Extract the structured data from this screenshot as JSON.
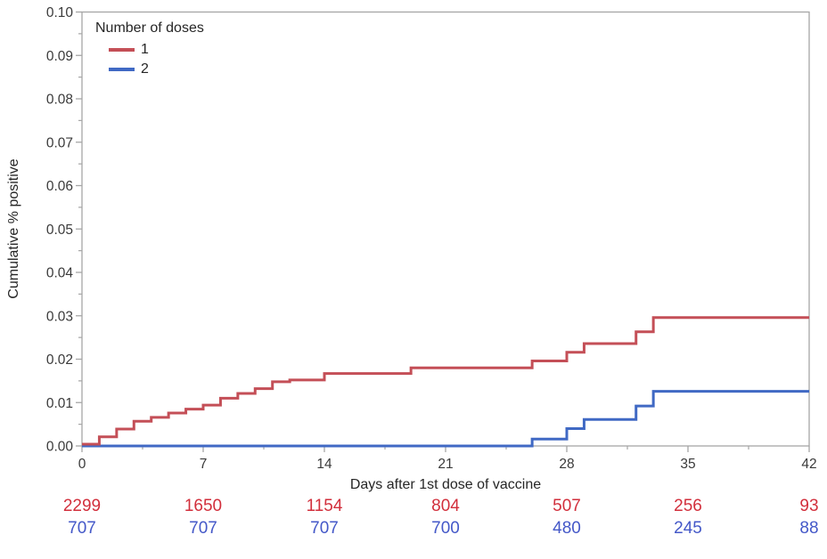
{
  "chart_data": {
    "type": "line",
    "subtype": "step-cumulative-incidence",
    "title": "",
    "xlabel": "Days after 1st dose of vaccine",
    "ylabel": "Cumulative % positive",
    "xlim": [
      0,
      42
    ],
    "ylim": [
      0,
      0.1
    ],
    "grid": "off",
    "axis_color": "#A6A6A6",
    "tick_text_color": "#3A3A3A",
    "xticks": [
      {
        "v": 0,
        "label": "0"
      },
      {
        "v": 7,
        "label": "7"
      },
      {
        "v": 14,
        "label": "14"
      },
      {
        "v": 21,
        "label": "21"
      },
      {
        "v": 28,
        "label": "28"
      },
      {
        "v": 35,
        "label": "35"
      },
      {
        "v": 42,
        "label": "42"
      }
    ],
    "xminor": [
      3.5,
      10.5,
      17.5,
      24.5,
      31.5,
      38.5
    ],
    "yticks": [
      {
        "v": 0.0,
        "label": "0.00"
      },
      {
        "v": 0.01,
        "label": "0.01"
      },
      {
        "v": 0.02,
        "label": "0.02"
      },
      {
        "v": 0.03,
        "label": "0.03"
      },
      {
        "v": 0.04,
        "label": "0.04"
      },
      {
        "v": 0.05,
        "label": "0.05"
      },
      {
        "v": 0.06,
        "label": "0.06"
      },
      {
        "v": 0.07,
        "label": "0.07"
      },
      {
        "v": 0.08,
        "label": "0.08"
      },
      {
        "v": 0.09,
        "label": "0.09"
      },
      {
        "v": 0.1,
        "label": "0.10"
      }
    ],
    "yminor": [
      0.005,
      0.015,
      0.025,
      0.035,
      0.045,
      0.055,
      0.065,
      0.075,
      0.085,
      0.095
    ],
    "legend": {
      "title": "Number of doses",
      "position": "top-left-inside"
    },
    "series": [
      {
        "name": "1",
        "color": "#C44F57",
        "step": true,
        "points": [
          [
            0,
            0.0004
          ],
          [
            1,
            0.0021
          ],
          [
            2,
            0.0039
          ],
          [
            3,
            0.0057
          ],
          [
            4,
            0.0066
          ],
          [
            5,
            0.0076
          ],
          [
            6,
            0.0085
          ],
          [
            7,
            0.0094
          ],
          [
            8,
            0.011
          ],
          [
            9,
            0.0121
          ],
          [
            10,
            0.0132
          ],
          [
            11,
            0.0148
          ],
          [
            12,
            0.0152
          ],
          [
            14,
            0.0167
          ],
          [
            19,
            0.018
          ],
          [
            26,
            0.0196
          ],
          [
            28,
            0.0216
          ],
          [
            29,
            0.0236
          ],
          [
            32,
            0.0263
          ],
          [
            33,
            0.0296
          ]
        ],
        "end_x": 42
      },
      {
        "name": "2",
        "color": "#4069C4",
        "step": true,
        "points": [
          [
            0,
            0.0
          ],
          [
            26,
            0.0016
          ],
          [
            28,
            0.004
          ],
          [
            29,
            0.0061
          ],
          [
            32,
            0.0092
          ],
          [
            33,
            0.0126
          ]
        ],
        "end_x": 42
      }
    ],
    "at_risk": {
      "days": [
        0,
        7,
        14,
        21,
        28,
        35,
        42
      ],
      "rows": [
        {
          "name": "1",
          "color": "#D22F3C",
          "values": [
            "2299",
            "1650",
            "1154",
            "804",
            "507",
            "256",
            "93"
          ]
        },
        {
          "name": "2",
          "color": "#4458C8",
          "values": [
            "707",
            "707",
            "707",
            "700",
            "480",
            "245",
            "88"
          ]
        }
      ]
    }
  }
}
